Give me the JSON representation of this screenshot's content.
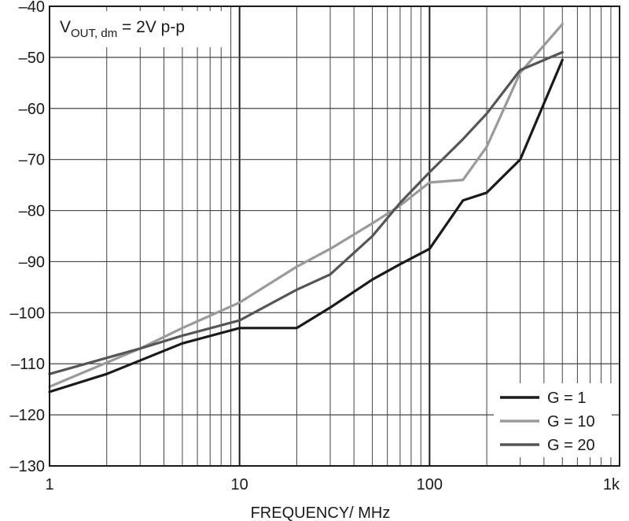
{
  "chart_data": {
    "type": "line",
    "title": "",
    "annotation": {
      "prefix": "V",
      "subscript": "OUT, dm",
      "suffix": " = 2V p-p"
    },
    "xlabel": "FREQUENCY/ MHz",
    "ylabel": "",
    "xscale": "log",
    "xlim": [
      1,
      1000
    ],
    "ylim": [
      -130,
      -40
    ],
    "grid": true,
    "legend_position": "bottom-right",
    "x_ticks": [
      {
        "value": 1,
        "label": "1"
      },
      {
        "value": 10,
        "label": "10"
      },
      {
        "value": 100,
        "label": "100"
      },
      {
        "value": 1000,
        "label": "1k"
      }
    ],
    "y_ticks": [
      {
        "value": -40,
        "label": "–40"
      },
      {
        "value": -50,
        "label": "–50"
      },
      {
        "value": -60,
        "label": "–60"
      },
      {
        "value": -70,
        "label": "–70"
      },
      {
        "value": -80,
        "label": "–80"
      },
      {
        "value": -90,
        "label": "–90"
      },
      {
        "value": -100,
        "label": "–100"
      },
      {
        "value": -110,
        "label": "–110"
      },
      {
        "value": -120,
        "label": "–120"
      },
      {
        "value": -130,
        "label": "–130"
      }
    ],
    "series": [
      {
        "name": "G = 1",
        "color": "#1a1a1a",
        "points": [
          [
            1,
            -115.5
          ],
          [
            2,
            -112
          ],
          [
            5,
            -106
          ],
          [
            10,
            -103
          ],
          [
            20,
            -103
          ],
          [
            30,
            -99
          ],
          [
            50,
            -93.5
          ],
          [
            70,
            -90.5
          ],
          [
            100,
            -87.5
          ],
          [
            150,
            -78
          ],
          [
            200,
            -76.5
          ],
          [
            300,
            -70
          ],
          [
            500,
            -50.5
          ]
        ]
      },
      {
        "name": "G = 10",
        "color": "#9a9a9a",
        "points": [
          [
            1,
            -114.5
          ],
          [
            3,
            -107
          ],
          [
            5,
            -103
          ],
          [
            10,
            -98
          ],
          [
            20,
            -91
          ],
          [
            30,
            -87.5
          ],
          [
            50,
            -82.5
          ],
          [
            70,
            -79
          ],
          [
            100,
            -74.5
          ],
          [
            150,
            -74
          ],
          [
            200,
            -67.5
          ],
          [
            300,
            -53
          ],
          [
            500,
            -43.5
          ]
        ]
      },
      {
        "name": "G = 20",
        "color": "#555555",
        "points": [
          [
            1,
            -112
          ],
          [
            3,
            -107
          ],
          [
            5,
            -104.5
          ],
          [
            10,
            -101.5
          ],
          [
            20,
            -95.5
          ],
          [
            30,
            -92.5
          ],
          [
            50,
            -85
          ],
          [
            70,
            -78.5
          ],
          [
            100,
            -72.5
          ],
          [
            150,
            -66
          ],
          [
            200,
            -61
          ],
          [
            300,
            -52.5
          ],
          [
            500,
            -49
          ]
        ]
      }
    ]
  }
}
